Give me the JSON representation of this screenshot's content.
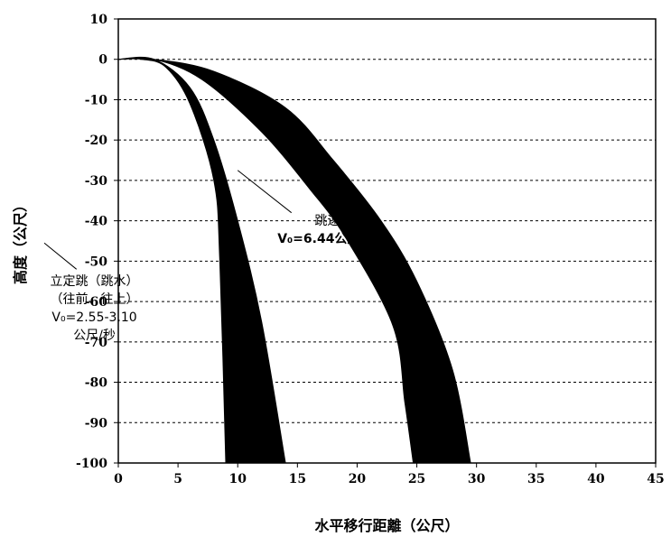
{
  "chart_data": {
    "type": "area",
    "xlabel": "水平移行距離（公尺）",
    "ylabel": "高度（公尺）",
    "xlim": [
      0,
      45
    ],
    "ylim": [
      -100,
      10
    ],
    "x_ticks": [
      "0",
      "5",
      "10",
      "15",
      "20",
      "25",
      "30",
      "35",
      "40",
      "45"
    ],
    "y_ticks": [
      "10",
      "0",
      "-10",
      "-20",
      "-30",
      "-40",
      "-50",
      "-60",
      "-70",
      "-80",
      "-90",
      "-100"
    ],
    "grid": "horizontal-dashed",
    "series": [
      {
        "upper_edge": [
          [
            0,
            0
          ],
          [
            3,
            0
          ],
          [
            6,
            -7
          ],
          [
            8,
            -20
          ],
          [
            10,
            -40
          ],
          [
            12,
            -65
          ],
          [
            14,
            -100
          ]
        ],
        "lower_edge": [
          [
            0,
            0
          ],
          [
            2,
            0
          ],
          [
            4,
            -2
          ],
          [
            6,
            -11
          ],
          [
            8,
            -30
          ],
          [
            8.5,
            -50
          ],
          [
            9,
            -100
          ]
        ]
      },
      {
        "upper_edge": [
          [
            0,
            0
          ],
          [
            3,
            0
          ],
          [
            8,
            -3
          ],
          [
            14,
            -12
          ],
          [
            18,
            -25
          ],
          [
            22,
            -40
          ],
          [
            25,
            -55
          ],
          [
            28,
            -77
          ],
          [
            29.5,
            -100
          ]
        ],
        "lower_edge": [
          [
            0,
            0
          ],
          [
            3,
            0
          ],
          [
            7,
            -5
          ],
          [
            12,
            -18
          ],
          [
            16,
            -32
          ],
          [
            19,
            -44
          ],
          [
            23,
            -66
          ],
          [
            24,
            -85
          ],
          [
            24.7,
            -100
          ]
        ]
      }
    ],
    "annotations": [
      {
        "lines": [
          "跳遠",
          "V₀=6.44公尺/秒"
        ],
        "bold": [
          false,
          true
        ],
        "text_at": [
          17.5,
          -41
        ],
        "pointer_from": [
          14.5,
          -38
        ],
        "pointer_to": [
          10,
          -27.5
        ]
      },
      {
        "lines": [
          "立定跳（跳水）",
          "（往前、往上）",
          "V₀=2.55-3.10",
          "公尺/秒"
        ],
        "bold": [
          false,
          false,
          false,
          false
        ],
        "text_at": [
          -2,
          -56
        ],
        "pointer_from": [
          -3.5,
          -52
        ],
        "pointer_to": [
          -6.2,
          -45.5
        ]
      }
    ]
  }
}
